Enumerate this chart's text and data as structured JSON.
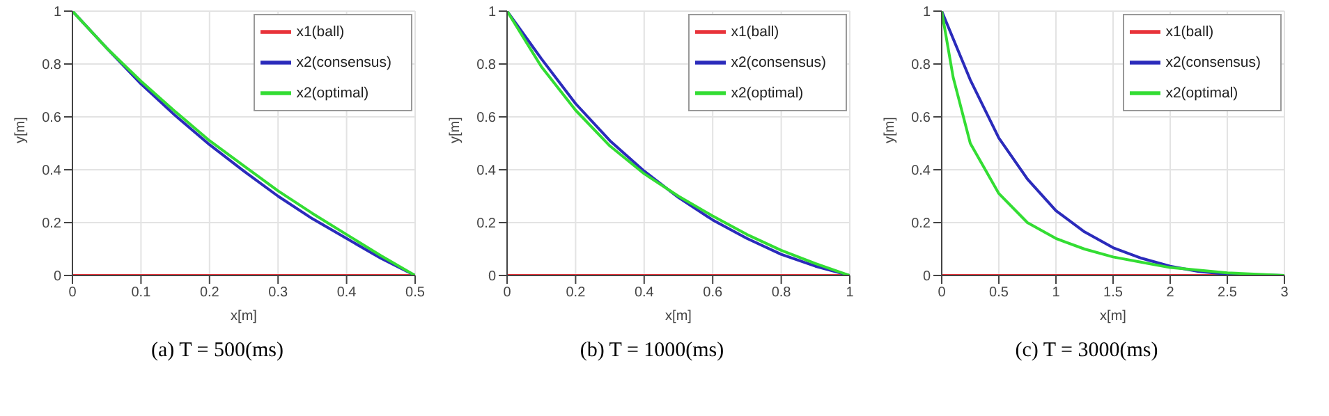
{
  "chart_data": [
    {
      "type": "line",
      "xlabel": "x[m]",
      "ylabel": "y[m]",
      "annotations": [
        "(a) T = 500(ms)"
      ],
      "xlim": [
        0,
        0.5
      ],
      "xticks": [
        0,
        0.1,
        0.2,
        0.3,
        0.4,
        0.5
      ],
      "ylim": [
        0,
        1
      ],
      "yticks": [
        0,
        0.2,
        0.4,
        0.6,
        0.8,
        1
      ],
      "grid": true,
      "legend": "top right",
      "series": [
        {
          "name": "x1(ball)",
          "color": "#e8333a",
          "x": [
            0,
            0.5
          ],
          "values": [
            0,
            0
          ]
        },
        {
          "name": "x2(consensus)",
          "color": "#2b2bbb",
          "x": [
            0,
            0.05,
            0.1,
            0.15,
            0.2,
            0.25,
            0.3,
            0.35,
            0.4,
            0.45,
            0.5
          ],
          "values": [
            1,
            0.86,
            0.725,
            0.605,
            0.495,
            0.395,
            0.3,
            0.215,
            0.14,
            0.065,
            0
          ]
        },
        {
          "name": "x2(optimal)",
          "color": "#33dd33",
          "x": [
            0,
            0.05,
            0.1,
            0.15,
            0.2,
            0.25,
            0.3,
            0.35,
            0.4,
            0.45,
            0.5
          ],
          "values": [
            1,
            0.86,
            0.735,
            0.62,
            0.51,
            0.415,
            0.32,
            0.235,
            0.155,
            0.075,
            0
          ]
        }
      ]
    },
    {
      "type": "line",
      "xlabel": "x[m]",
      "ylabel": "y[m]",
      "annotations": [
        "(b) T = 1000(ms)"
      ],
      "xlim": [
        0,
        1
      ],
      "xticks": [
        0,
        0.2,
        0.4,
        0.6,
        0.8,
        1
      ],
      "ylim": [
        0,
        1
      ],
      "yticks": [
        0,
        0.2,
        0.4,
        0.6,
        0.8,
        1
      ],
      "grid": true,
      "legend": "top right",
      "series": [
        {
          "name": "x1(ball)",
          "color": "#e8333a",
          "x": [
            0,
            1
          ],
          "values": [
            0,
            0
          ]
        },
        {
          "name": "x2(consensus)",
          "color": "#2b2bbb",
          "x": [
            0,
            0.1,
            0.2,
            0.3,
            0.4,
            0.5,
            0.6,
            0.7,
            0.8,
            0.9,
            1
          ],
          "values": [
            1,
            0.82,
            0.65,
            0.51,
            0.395,
            0.295,
            0.21,
            0.14,
            0.08,
            0.035,
            0
          ]
        },
        {
          "name": "x2(optimal)",
          "color": "#33dd33",
          "x": [
            0,
            0.1,
            0.2,
            0.3,
            0.4,
            0.5,
            0.6,
            0.7,
            0.8,
            0.9,
            1
          ],
          "values": [
            1,
            0.79,
            0.625,
            0.49,
            0.385,
            0.3,
            0.225,
            0.155,
            0.095,
            0.045,
            0
          ]
        }
      ]
    },
    {
      "type": "line",
      "xlabel": "x[m]",
      "ylabel": "y[m]",
      "annotations": [
        "(c) T = 3000(ms)"
      ],
      "xlim": [
        0,
        3
      ],
      "xticks": [
        0,
        0.5,
        1,
        1.5,
        2,
        2.5,
        3
      ],
      "ylim": [
        0,
        1
      ],
      "yticks": [
        0,
        0.2,
        0.4,
        0.6,
        0.8,
        1
      ],
      "grid": true,
      "legend": "top right",
      "series": [
        {
          "name": "x1(ball)",
          "color": "#e8333a",
          "x": [
            0,
            3
          ],
          "values": [
            0,
            0
          ]
        },
        {
          "name": "x2(consensus)",
          "color": "#2b2bbb",
          "x": [
            0,
            0.25,
            0.5,
            0.75,
            1,
            1.25,
            1.5,
            1.75,
            2,
            2.25,
            2.5,
            3
          ],
          "values": [
            1,
            0.74,
            0.52,
            0.365,
            0.245,
            0.165,
            0.105,
            0.065,
            0.035,
            0.015,
            0.005,
            0
          ]
        },
        {
          "name": "x2(optimal)",
          "color": "#33dd33",
          "x": [
            0,
            0.1,
            0.25,
            0.5,
            0.75,
            1,
            1.25,
            1.5,
            1.75,
            2,
            2.5,
            3
          ],
          "values": [
            1,
            0.75,
            0.5,
            0.31,
            0.2,
            0.14,
            0.1,
            0.07,
            0.05,
            0.03,
            0.01,
            0
          ]
        }
      ]
    }
  ]
}
